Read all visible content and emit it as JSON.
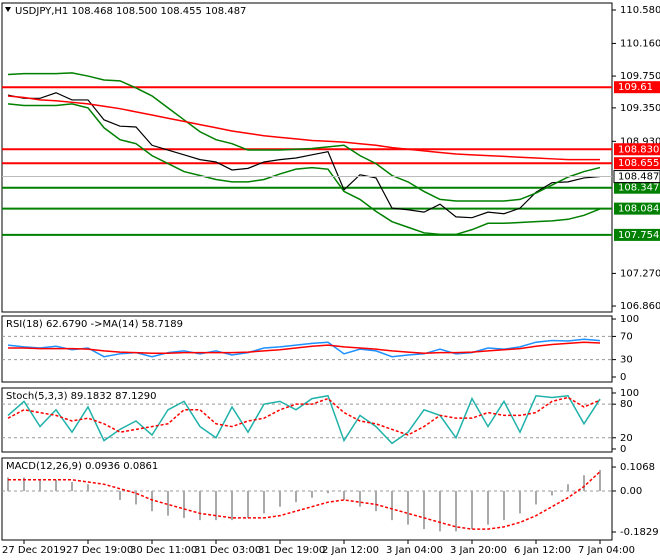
{
  "chart_data": [
    {
      "type": "line",
      "title": "USDJPY,H1  108.468 108.500 108.455 108.487",
      "categories": [
        null,
        "27 Dec 2019",
        null,
        null,
        null,
        "27 Dec 19:00",
        null,
        null,
        null,
        "30 Dec 11:00",
        null,
        null,
        null,
        "31 Dec 03:00",
        null,
        null,
        null,
        "31 Dec 19:00",
        null,
        null,
        null,
        "2 Jan 12:00",
        null,
        null,
        null,
        "3 Jan 04:00",
        null,
        null,
        null,
        "3 Jan 20:00",
        null,
        null,
        null,
        "6 Jan 12:00",
        null,
        null,
        null,
        "7 Jan 04:00"
      ],
      "series": [
        {
          "color": "#000000",
          "values": [
            109.51,
            109.47,
            109.47,
            109.54,
            109.45,
            109.45,
            109.2,
            109.12,
            109.11,
            108.88,
            108.82,
            108.76,
            108.7,
            108.67,
            108.57,
            108.59,
            108.67,
            108.7,
            108.72,
            108.76,
            108.8,
            108.32,
            108.51,
            108.47,
            108.09,
            108.07,
            108.04,
            108.14,
            107.98,
            107.97,
            108.04,
            108.02,
            108.09,
            108.29,
            108.41,
            108.42,
            108.47,
            108.487
          ]
        },
        {
          "color": "#008000",
          "values": [
            109.77,
            109.78,
            109.78,
            109.78,
            109.79,
            109.75,
            109.7,
            109.69,
            109.6,
            109.5,
            109.35,
            109.2,
            109.05,
            108.95,
            108.9,
            108.82,
            108.82,
            108.82,
            108.83,
            108.84,
            108.86,
            108.88,
            108.75,
            108.65,
            108.5,
            108.42,
            108.3,
            108.2,
            108.18,
            108.18,
            108.18,
            108.18,
            108.2,
            108.28,
            108.38,
            108.48,
            108.55,
            108.6
          ]
        },
        {
          "color": "#008000",
          "values": [
            109.4,
            109.38,
            109.38,
            109.38,
            109.4,
            109.35,
            109.1,
            108.95,
            108.9,
            108.75,
            108.65,
            108.55,
            108.5,
            108.45,
            108.42,
            108.42,
            108.45,
            108.52,
            108.58,
            108.6,
            108.58,
            108.3,
            108.2,
            108.05,
            107.92,
            107.85,
            107.78,
            107.76,
            107.76,
            107.82,
            107.9,
            107.9,
            107.91,
            107.92,
            107.93,
            107.95,
            108,
            108.08
          ]
        },
        {
          "color": "#ff0000",
          "values": [
            109.5,
            109.48,
            109.45,
            109.44,
            109.42,
            109.4,
            109.37,
            109.34,
            109.3,
            109.26,
            109.22,
            109.18,
            109.14,
            109.1,
            109.06,
            109.03,
            109,
            108.98,
            108.96,
            108.94,
            108.93,
            108.92,
            108.9,
            108.88,
            108.85,
            108.83,
            108.81,
            108.79,
            108.77,
            108.76,
            108.75,
            108.74,
            108.73,
            108.72,
            108.71,
            108.7,
            108.7,
            108.7
          ]
        }
      ],
      "ylim": [
        106.785,
        110.668
      ],
      "yticks": [
        {
          "value": 110.58,
          "label": "110.580"
        },
        {
          "value": 110.16,
          "label": "110.160"
        },
        {
          "value": 109.75,
          "label": "109.750"
        },
        {
          "value": 109.35,
          "label": "109.350"
        },
        {
          "value": 108.93,
          "label": "108.930"
        },
        {
          "value": 107.27,
          "label": "107.270"
        },
        {
          "value": 106.86,
          "label": "106.860"
        }
      ],
      "levels": [
        {
          "value": 109.61,
          "color": "#ff0000"
        },
        {
          "value": 108.83,
          "label": "108.830",
          "color": "#ff0000"
        },
        {
          "value": 108.655,
          "color": "#ff0000"
        },
        {
          "value": 108.347,
          "color": "#008000"
        },
        {
          "value": 108.084,
          "color": "#008000"
        },
        {
          "value": 107.754,
          "color": "#008000"
        }
      ],
      "last_price": 108.487
    },
    {
      "type": "line",
      "title": "RSI(18) 62.6790 ->MA(14) 58.7189",
      "series": [
        {
          "color": "#1e90ff",
          "values": [
            55,
            52,
            50,
            53,
            47,
            50,
            35,
            40,
            42,
            35,
            42,
            45,
            40,
            45,
            38,
            42,
            50,
            52,
            55,
            58,
            60,
            40,
            48,
            45,
            35,
            38,
            40,
            48,
            40,
            42,
            50,
            48,
            52,
            60,
            63,
            62,
            65,
            62.679
          ]
        },
        {
          "color": "#ff0000",
          "values": [
            50,
            50,
            49,
            49,
            49,
            48,
            45,
            43,
            42,
            41,
            41,
            42,
            42,
            42,
            42,
            43,
            45,
            47,
            50,
            53,
            55,
            52,
            50,
            48,
            45,
            43,
            41,
            42,
            42,
            43,
            45,
            47,
            49,
            53,
            56,
            58,
            60,
            58.7189
          ]
        }
      ],
      "ylim": [
        -8.6,
        105.2
      ],
      "yticks": [
        100,
        70,
        30,
        0
      ]
    },
    {
      "type": "line",
      "title": "Stoch(5,3,3) 89.1832 87.1290",
      "series": [
        {
          "color": "#20b2aa",
          "values": [
            60,
            85,
            40,
            70,
            30,
            75,
            15,
            35,
            50,
            25,
            70,
            85,
            40,
            20,
            75,
            30,
            80,
            85,
            70,
            90,
            95,
            15,
            60,
            40,
            10,
            30,
            70,
            60,
            20,
            90,
            40,
            85,
            30,
            95,
            92,
            95,
            45,
            89.1832
          ]
        },
        {
          "color": "#ff0000",
          "dash": true,
          "values": [
            55,
            70,
            65,
            60,
            50,
            55,
            45,
            30,
            35,
            40,
            45,
            70,
            70,
            45,
            40,
            50,
            55,
            70,
            80,
            80,
            90,
            65,
            50,
            45,
            35,
            25,
            40,
            60,
            55,
            55,
            65,
            60,
            60,
            65,
            85,
            92,
            75,
            87.129
          ]
        }
      ],
      "ylim": [
        -5.4,
        108.9
      ],
      "yticks": [
        100,
        80,
        20,
        0
      ]
    },
    {
      "type": "line",
      "title": "MACD(12,26,9) 0.0936 0.0861",
      "series": [
        {
          "type": "bar",
          "color": "#a9a9a9",
          "values": [
            0.06,
            0.06,
            0.05,
            0.05,
            0.04,
            0.03,
            0,
            -0.04,
            -0.06,
            -0.09,
            -0.11,
            -0.12,
            -0.13,
            -0.13,
            -0.13,
            -0.12,
            -0.1,
            -0.07,
            -0.05,
            -0.03,
            -0.01,
            -0.04,
            -0.07,
            -0.09,
            -0.13,
            -0.15,
            -0.17,
            -0.18,
            -0.18,
            -0.17,
            -0.15,
            -0.13,
            -0.1,
            -0.06,
            -0.02,
            0.03,
            0.07,
            0.0936
          ]
        },
        {
          "color": "#ff0000",
          "dash": true,
          "values": [
            0.05,
            0.05,
            0.05,
            0.05,
            0.05,
            0.04,
            0.03,
            0.01,
            -0.01,
            -0.04,
            -0.06,
            -0.08,
            -0.1,
            -0.11,
            -0.12,
            -0.12,
            -0.12,
            -0.11,
            -0.09,
            -0.07,
            -0.05,
            -0.04,
            -0.05,
            -0.06,
            -0.08,
            -0.1,
            -0.12,
            -0.14,
            -0.16,
            -0.17,
            -0.17,
            -0.16,
            -0.14,
            -0.11,
            -0.07,
            -0.03,
            0.02,
            0.0861
          ]
        }
      ],
      "ylim": [
        -0.2186,
        0.147
      ],
      "yticks": [
        0.1068,
        {
          "value": 0,
          "label": "0.00"
        },
        -0.1829
      ]
    }
  ]
}
